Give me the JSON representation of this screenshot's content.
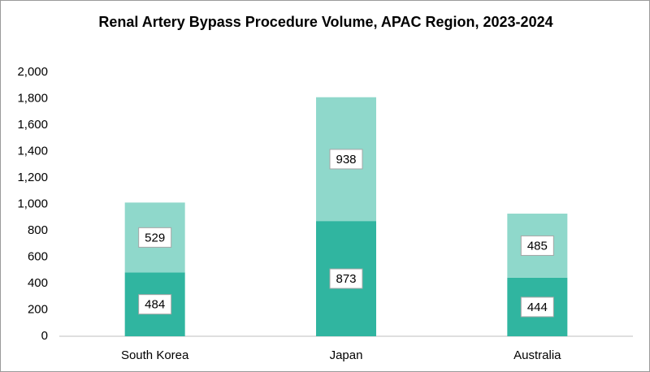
{
  "chart_data": {
    "type": "stacked_bar",
    "title": "Renal Artery Bypass Procedure Volume, APAC Region, 2023-2024",
    "categories": [
      "South Korea",
      "Japan",
      "Australia"
    ],
    "series": [
      {
        "color": "#30b5a0",
        "values": [
          484,
          873,
          444
        ]
      },
      {
        "color": "#8fd8cb",
        "values": [
          529,
          938,
          485
        ]
      }
    ],
    "ylim": [
      0,
      2000
    ],
    "yticks": [
      0,
      200,
      400,
      600,
      800,
      {
        "value": 1000,
        "label": "1,000"
      },
      {
        "value": 1200,
        "label": "1,200"
      },
      {
        "value": 1400,
        "label": "1,400"
      },
      {
        "value": 1600,
        "label": "1,600"
      },
      {
        "value": 1800,
        "label": "1,800"
      },
      {
        "value": 2000,
        "label": "2,000"
      }
    ],
    "grid": false
  }
}
